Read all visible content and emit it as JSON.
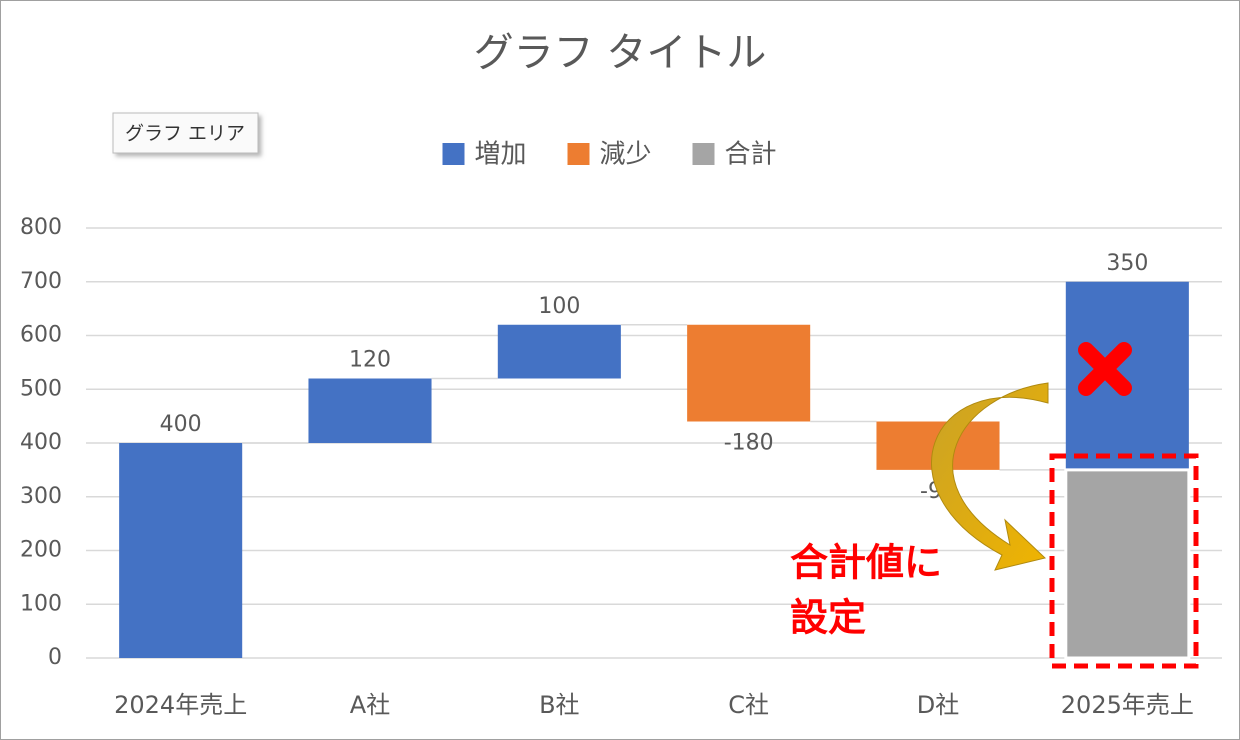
{
  "chart_data": {
    "type": "waterfall",
    "title": "グラフ タイトル",
    "categories": [
      "2024年売上",
      "A社",
      "B社",
      "C社",
      "D社",
      "2025年売上"
    ],
    "values": [
      400,
      120,
      100,
      -180,
      -90,
      350
    ],
    "legend": [
      {
        "name": "増加",
        "color": "#4472c4"
      },
      {
        "name": "減少",
        "color": "#ed7d31"
      },
      {
        "name": "合計",
        "color": "#a5a5a5"
      }
    ],
    "ylim": [
      0,
      800
    ],
    "yticks": [
      0,
      100,
      200,
      300,
      400,
      500,
      600,
      700,
      800
    ],
    "grid": true,
    "tooltip": "グラフ エリア",
    "annotation": {
      "lines": [
        "合計値に",
        "設定"
      ],
      "point": 5
    }
  }
}
